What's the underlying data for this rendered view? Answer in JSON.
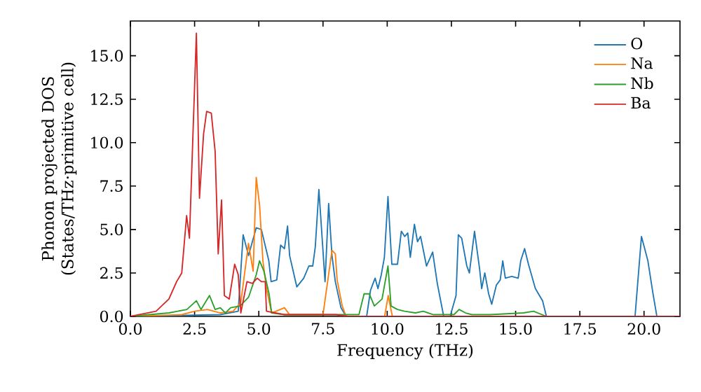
{
  "chart_data": {
    "type": "line",
    "xlabel": "Frequency (THz)",
    "ylabel": "Phonon projected DOS (States/THz·primitive cell)",
    "xlim": [
      0,
      21.4
    ],
    "ylim": [
      0,
      17
    ],
    "xticks": [
      {
        "value": 0,
        "label": "0.0"
      },
      {
        "value": 2.5,
        "label": "2.5"
      },
      {
        "value": 5,
        "label": "5.0"
      },
      {
        "value": 7.5,
        "label": "7.5"
      },
      {
        "value": 10,
        "label": "10.0"
      },
      {
        "value": 12.5,
        "label": "12.5"
      },
      {
        "value": 15,
        "label": "15.0"
      },
      {
        "value": 17.5,
        "label": "17.5"
      },
      {
        "value": 20,
        "label": "20.0"
      }
    ],
    "yticks": [
      {
        "value": 0,
        "label": "0.0"
      },
      {
        "value": 2.5,
        "label": "2.5"
      },
      {
        "value": 5,
        "label": "5.0"
      },
      {
        "value": 7.5,
        "label": "7.5"
      },
      {
        "value": 10,
        "label": "10.0"
      },
      {
        "value": 12.5,
        "label": "12.5"
      },
      {
        "value": 15,
        "label": "15.0"
      }
    ],
    "legend": "top right",
    "series": [
      {
        "name": "O",
        "color": "#1f77b4",
        "x": [
          0,
          3.5,
          4.2,
          4.39,
          4.6,
          4.9,
          5.1,
          5.39,
          5.48,
          5.7,
          5.85,
          6.0,
          6.12,
          6.2,
          6.48,
          6.75,
          6.95,
          7.1,
          7.2,
          7.34,
          7.58,
          7.72,
          7.85,
          7.98,
          8.2,
          8.4,
          9.2,
          9.35,
          9.45,
          9.53,
          9.64,
          9.77,
          9.89,
          10.03,
          10.18,
          10.4,
          10.55,
          10.68,
          10.8,
          10.9,
          11.06,
          11.18,
          11.3,
          11.53,
          11.77,
          11.95,
          12.2,
          12.45,
          12.68,
          12.77,
          12.9,
          13.1,
          13.2,
          13.4,
          13.6,
          13.68,
          13.8,
          13.95,
          14.07,
          14.25,
          14.4,
          14.5,
          14.6,
          14.85,
          15.1,
          15.2,
          15.35,
          15.5,
          15.77,
          16.05,
          16.2,
          19.65,
          19.9,
          20.15,
          20.35,
          20.5,
          21.4
        ],
        "values": [
          0,
          0.1,
          0.3,
          4.7,
          3.5,
          5.1,
          5.0,
          3.2,
          2.0,
          2.1,
          4.1,
          3.9,
          5.2,
          3.5,
          1.7,
          2.2,
          2.9,
          2.9,
          4.0,
          7.3,
          2.0,
          6.5,
          3.5,
          2.0,
          0.5,
          0,
          0,
          1.5,
          1.9,
          2.2,
          1.6,
          2.4,
          3.4,
          6.9,
          3.0,
          3.0,
          4.9,
          4.6,
          4.8,
          3.4,
          5.3,
          4.3,
          4.6,
          2.9,
          3.7,
          1.9,
          0,
          0,
          1.2,
          4.7,
          4.5,
          2.9,
          2.5,
          4.9,
          2.7,
          1.6,
          2.5,
          1.3,
          0.7,
          1.8,
          2.1,
          3.2,
          2.2,
          2.3,
          2.2,
          3.2,
          3.9,
          3.0,
          1.6,
          0.9,
          0,
          0,
          4.6,
          3.2,
          1.3,
          0,
          0
        ]
      },
      {
        "name": "Na",
        "color": "#ff7f0e",
        "x": [
          0,
          2.0,
          2.5,
          3.0,
          3.5,
          4.0,
          4.3,
          4.6,
          4.78,
          4.9,
          5.03,
          5.16,
          5.3,
          5.5,
          6.0,
          6.2,
          7.5,
          7.85,
          7.98,
          8.05,
          8.25,
          8.4,
          9.9,
          10.04,
          10.2,
          21.4
        ],
        "values": [
          0,
          0.1,
          0.3,
          0.4,
          0.2,
          0.3,
          0.8,
          4.2,
          2.6,
          8.0,
          6.4,
          3.2,
          1.6,
          0.2,
          0.5,
          0.1,
          0.1,
          3.8,
          3.6,
          2.1,
          0.6,
          0,
          0,
          1.2,
          0,
          0
        ]
      },
      {
        "name": "Nb",
        "color": "#2ca02c",
        "x": [
          0,
          1.5,
          2.2,
          2.57,
          2.75,
          3.08,
          3.3,
          3.5,
          3.7,
          3.9,
          4.27,
          4.6,
          4.9,
          5.03,
          5.2,
          5.4,
          5.5,
          6.0,
          8.9,
          9.1,
          9.3,
          9.5,
          9.8,
          10.03,
          10.15,
          10.4,
          10.68,
          11.1,
          11.4,
          11.8,
          12.6,
          12.8,
          13.05,
          13.3,
          14.0,
          15.3,
          15.7,
          16.2,
          21.4
        ],
        "values": [
          0,
          0.2,
          0.4,
          0.9,
          0.4,
          1.2,
          0.4,
          0.5,
          0.2,
          0.5,
          0.6,
          1.1,
          2.4,
          3.2,
          2.6,
          1.3,
          0.2,
          0.1,
          0.1,
          1.3,
          1.3,
          0.6,
          1.0,
          2.9,
          0.6,
          0.4,
          0.3,
          0.2,
          0.3,
          0.1,
          0.1,
          0.4,
          0.2,
          0.1,
          0.1,
          0.2,
          0.3,
          0,
          0
        ]
      },
      {
        "name": "Ba",
        "color": "#d62728",
        "x": [
          0,
          1.0,
          1.5,
          1.8,
          2.0,
          2.19,
          2.3,
          2.57,
          2.69,
          2.85,
          2.97,
          3.15,
          3.3,
          3.42,
          3.55,
          3.66,
          3.85,
          4.06,
          4.2,
          4.3,
          4.54,
          4.75,
          4.94,
          5.1,
          5.25,
          5.3,
          6.0,
          8.0,
          8.5,
          21.4
        ],
        "values": [
          0,
          0.3,
          1.0,
          2.0,
          2.5,
          5.8,
          4.5,
          16.3,
          6.8,
          10.5,
          11.8,
          11.7,
          9.5,
          3.6,
          6.7,
          1.2,
          1.0,
          3.0,
          2.4,
          0.2,
          2.0,
          1.9,
          2.2,
          2.0,
          2.0,
          0.3,
          0.1,
          0.1,
          0,
          0
        ]
      }
    ]
  }
}
